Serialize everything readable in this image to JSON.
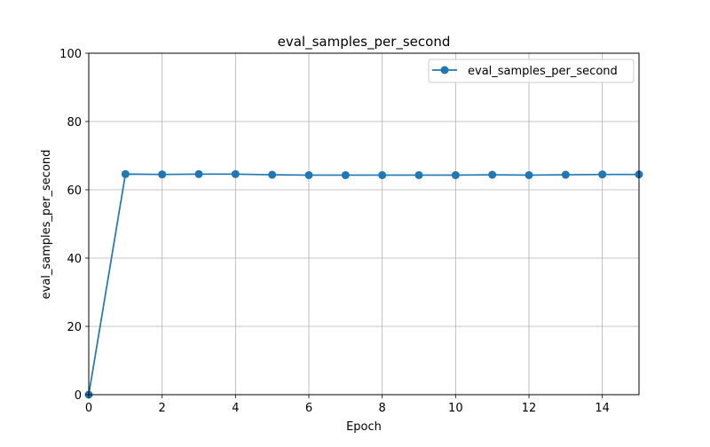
{
  "chart_data": {
    "type": "line",
    "title": "eval_samples_per_second",
    "xlabel": "Epoch",
    "ylabel": "eval_samples_per_second",
    "xlim": [
      0,
      15
    ],
    "ylim": [
      0,
      100
    ],
    "x_ticks": [
      0,
      2,
      4,
      6,
      8,
      10,
      12,
      14
    ],
    "y_ticks": [
      0,
      20,
      40,
      60,
      80,
      100
    ],
    "grid": true,
    "legend_position": "top-right",
    "series": [
      {
        "name": "eval_samples_per_second",
        "color": "#1f77b4",
        "marker": "circle",
        "x": [
          0,
          1,
          2,
          3,
          4,
          5,
          6,
          7,
          8,
          9,
          10,
          11,
          12,
          13,
          14,
          15
        ],
        "y": [
          0,
          64.6,
          64.5,
          64.6,
          64.6,
          64.4,
          64.3,
          64.3,
          64.3,
          64.3,
          64.3,
          64.4,
          64.3,
          64.4,
          64.5,
          64.5
        ]
      }
    ]
  }
}
